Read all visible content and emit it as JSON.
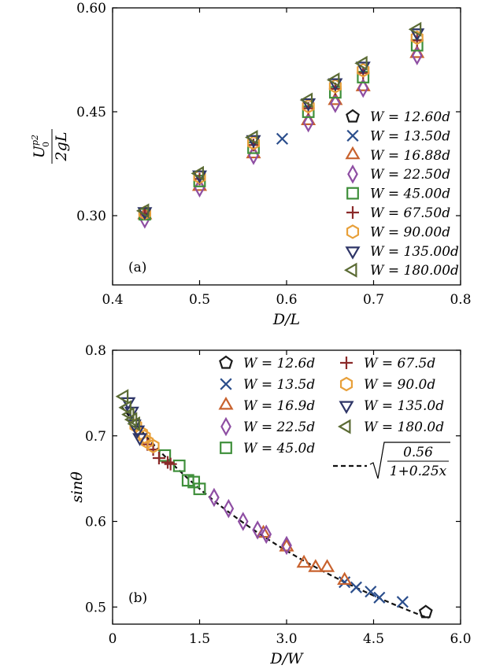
{
  "chart_data": [
    {
      "type": "scatter",
      "panel_label": "(a)",
      "xlabel": "D/L",
      "ylabel_num": "U",
      "ylabel_sup": "p2",
      "ylabel_sub": "0",
      "ylabel_den": "2gL",
      "xlim": [
        0.4,
        0.8
      ],
      "ylim": [
        0.2,
        0.6
      ],
      "xticks": [
        "0.4",
        "0.5",
        "0.6",
        "0.7",
        "0.8"
      ],
      "xtick_values": [
        0.4,
        0.5,
        0.6,
        0.7,
        0.8
      ],
      "yticks": [
        "0.30",
        "0.45",
        "0.60"
      ],
      "ytick_values": [
        0.3,
        0.45,
        0.6
      ],
      "legend_placement": "right",
      "series": [
        {
          "name": "W = 12.60d",
          "marker": "pentagon",
          "color": "#1a1a1a",
          "x": [],
          "y": []
        },
        {
          "name": "W = 13.50d",
          "marker": "x",
          "color": "#2b4e8c",
          "x": [
            0.595
          ],
          "y": [
            0.411
          ]
        },
        {
          "name": "W = 16.88d",
          "marker": "triangle-up",
          "color": "#c8622e",
          "x": [
            0.437,
            0.5,
            0.562,
            0.625,
            0.656,
            0.688,
            0.75
          ],
          "y": [
            0.301,
            0.342,
            0.389,
            0.437,
            0.466,
            0.486,
            0.534
          ]
        },
        {
          "name": "W = 22.50d",
          "marker": "diamond",
          "color": "#8e4ea3",
          "x": [
            0.437,
            0.5,
            0.562,
            0.625,
            0.656,
            0.688,
            0.75
          ],
          "y": [
            0.295,
            0.34,
            0.387,
            0.434,
            0.462,
            0.484,
            0.531
          ]
        },
        {
          "name": "W = 45.00d",
          "marker": "square",
          "color": "#3f8f3b",
          "x": [
            0.437,
            0.5,
            0.562,
            0.625,
            0.656,
            0.688,
            0.75
          ],
          "y": [
            0.302,
            0.35,
            0.398,
            0.45,
            0.478,
            0.5,
            0.546
          ]
        },
        {
          "name": "W = 67.50d",
          "marker": "plus",
          "color": "#8b2a2a",
          "x": [
            0.437,
            0.5,
            0.562,
            0.625,
            0.656,
            0.688,
            0.75
          ],
          "y": [
            0.303,
            0.353,
            0.402,
            0.455,
            0.483,
            0.506,
            0.553
          ]
        },
        {
          "name": "W = 90.00d",
          "marker": "hexagon",
          "color": "#e8a03a",
          "x": [
            0.437,
            0.5,
            0.562,
            0.625,
            0.656,
            0.688,
            0.75
          ],
          "y": [
            0.304,
            0.356,
            0.405,
            0.458,
            0.487,
            0.51,
            0.557
          ]
        },
        {
          "name": "W = 135.00d",
          "marker": "triangle-down",
          "color": "#2e3567",
          "x": [
            0.437,
            0.5,
            0.562,
            0.625,
            0.656,
            0.688,
            0.75
          ],
          "y": [
            0.306,
            0.359,
            0.41,
            0.463,
            0.492,
            0.516,
            0.564
          ]
        },
        {
          "name": "W = 180.00d",
          "marker": "triangle-left",
          "color": "#5b6b34",
          "x": [
            0.437,
            0.5,
            0.562,
            0.625,
            0.656,
            0.688,
            0.75
          ],
          "y": [
            0.307,
            0.361,
            0.413,
            0.467,
            0.496,
            0.52,
            0.569
          ]
        }
      ]
    },
    {
      "type": "scatter",
      "panel_label": "(b)",
      "xlabel": "D/W",
      "ylabel": "sinθ",
      "xlim": [
        0,
        6
      ],
      "ylim": [
        0.48,
        0.8
      ],
      "xticks": [
        "0",
        "1.5",
        "3.0",
        "4.5",
        "6.0"
      ],
      "xtick_values": [
        0,
        1.5,
        3.0,
        4.5,
        6.0
      ],
      "yticks": [
        "0.5",
        "0.6",
        "0.7",
        "0.8"
      ],
      "ytick_values": [
        0.5,
        0.6,
        0.7,
        0.8
      ],
      "legend_placement": "top-right",
      "fit": {
        "name": "0.56 / 1+0.25x",
        "num": "0.56",
        "den": "1+0.25x",
        "a": 0.56,
        "b": 0.25,
        "style": "dashed",
        "color": "#111111"
      },
      "series": [
        {
          "name": "W = 12.6d",
          "marker": "pentagon",
          "color": "#1a1a1a",
          "x": [
            5.4
          ],
          "y": [
            0.494
          ]
        },
        {
          "name": "W = 13.5d",
          "marker": "x",
          "color": "#2b4e8c",
          "x": [
            4.0,
            4.2,
            4.45,
            4.6,
            5.0
          ],
          "y": [
            0.529,
            0.523,
            0.518,
            0.511,
            0.506
          ]
        },
        {
          "name": "W = 16.9d",
          "marker": "triangle-up",
          "color": "#c8622e",
          "x": [
            2.6,
            3.0,
            3.3,
            3.5,
            3.7,
            4.0
          ],
          "y": [
            0.586,
            0.57,
            0.551,
            0.546,
            0.546,
            0.531
          ]
        },
        {
          "name": "W = 22.5d",
          "marker": "diamond",
          "color": "#8e4ea3",
          "x": [
            1.75,
            2.0,
            2.25,
            2.5,
            2.65,
            3.0
          ],
          "y": [
            0.628,
            0.615,
            0.6,
            0.59,
            0.585,
            0.572
          ]
        },
        {
          "name": "W = 45.0d",
          "marker": "square",
          "color": "#3f8f3b",
          "x": [
            0.9,
            1.15,
            1.3,
            1.4,
            1.5
          ],
          "y": [
            0.677,
            0.665,
            0.648,
            0.646,
            0.638
          ]
        },
        {
          "name": "W = 67.5d",
          "marker": "plus",
          "color": "#8b2a2a",
          "x": [
            0.6,
            0.7,
            0.8,
            0.95,
            1.0
          ],
          "y": [
            0.69,
            0.684,
            0.674,
            0.669,
            0.667
          ]
        },
        {
          "name": "W = 90.0d",
          "marker": "hexagon",
          "color": "#e8a03a",
          "x": [
            0.4,
            0.5,
            0.55,
            0.6,
            0.7
          ],
          "y": [
            0.712,
            0.703,
            0.699,
            0.693,
            0.688
          ]
        },
        {
          "name": "W = 135.0d",
          "marker": "triangle-down",
          "color": "#2e3567",
          "x": [
            0.27,
            0.33,
            0.37,
            0.43,
            0.47
          ],
          "y": [
            0.74,
            0.729,
            0.714,
            0.707,
            0.698
          ]
        },
        {
          "name": "W = 180.0d",
          "marker": "triangle-left",
          "color": "#5b6b34",
          "x": [
            0.2,
            0.25,
            0.3,
            0.35,
            0.4
          ],
          "y": [
            0.746,
            0.733,
            0.725,
            0.719,
            0.714
          ]
        }
      ]
    }
  ]
}
